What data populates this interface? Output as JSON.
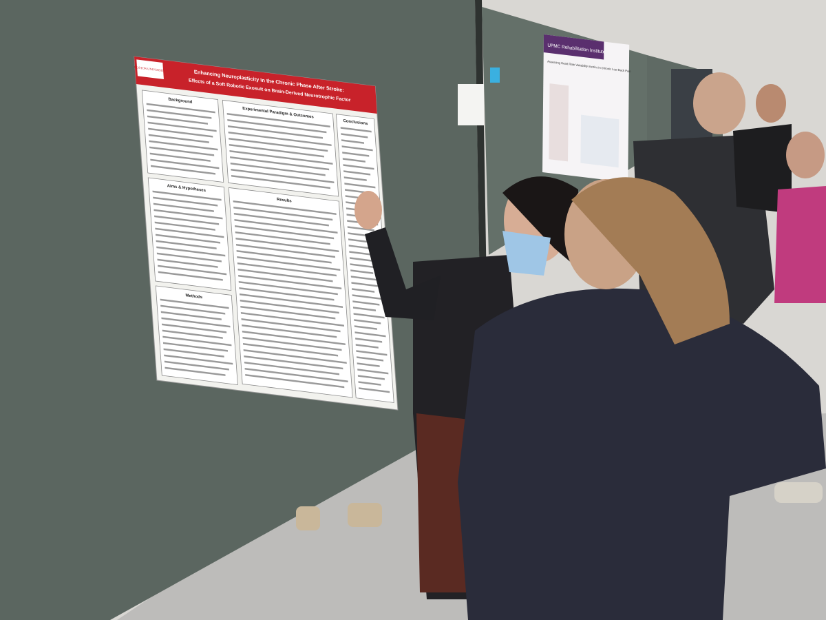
{
  "poster": {
    "logo": "BOSTON UNIVERSITY",
    "title_line1": "Enhancing Neuroplasticity in the Chronic Phase After Stroke:",
    "title_line2": "Effects of a Soft Robotic Exosuit on Brain-Derived Neurotrophic Factor",
    "sections": [
      "Background",
      "Aims & Hypotheses",
      "Methods",
      "Experimental Paradigm & Outcomes",
      "Results",
      "Conclusions"
    ]
  },
  "poster2": {
    "header": "UPMC Rehabilitation Institute",
    "title": "Assessing Heart Rate Variability metrics in Chronic Low Back Pain"
  }
}
